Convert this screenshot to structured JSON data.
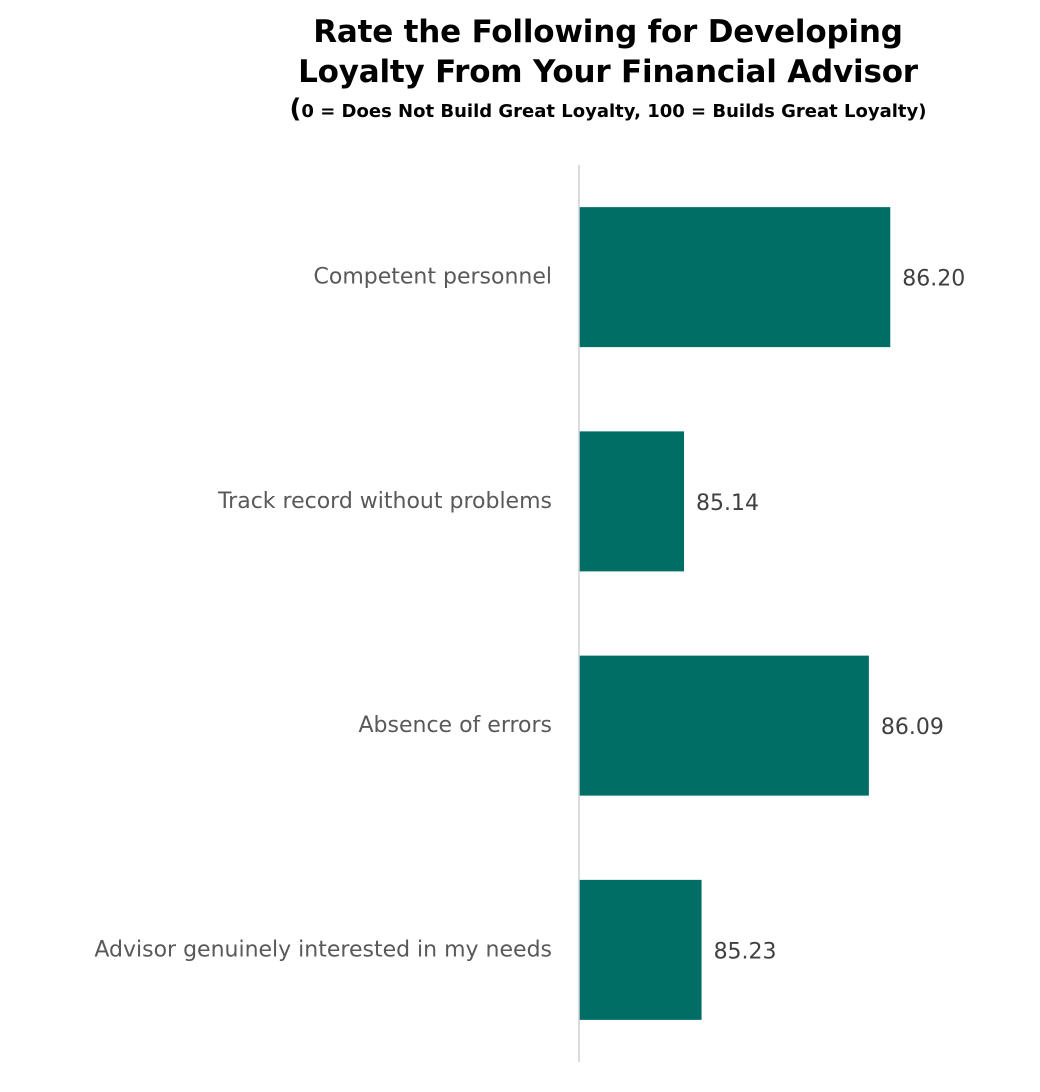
{
  "chart_data": {
    "type": "bar",
    "orientation": "horizontal",
    "title_line1": "Rate the Following for Developing",
    "title_line2": "Loyalty From Your Financial Advisor",
    "subtitle_open": "(",
    "subtitle_rest": "0 = Does Not Build Great Loyalty, 100 = Builds Great Loyalty)",
    "categories": [
      "Competent personnel",
      "Track record without problems",
      "Absence of errors",
      "Advisor genuinely interested in my needs"
    ],
    "values": [
      86.2,
      85.14,
      86.09,
      85.23
    ],
    "value_labels": [
      "86.20",
      "85.14",
      "86.09",
      "85.23"
    ],
    "xlim": [
      84.6,
      86.8
    ],
    "grid": false,
    "legend": "none",
    "bar_color": "#006E65"
  }
}
